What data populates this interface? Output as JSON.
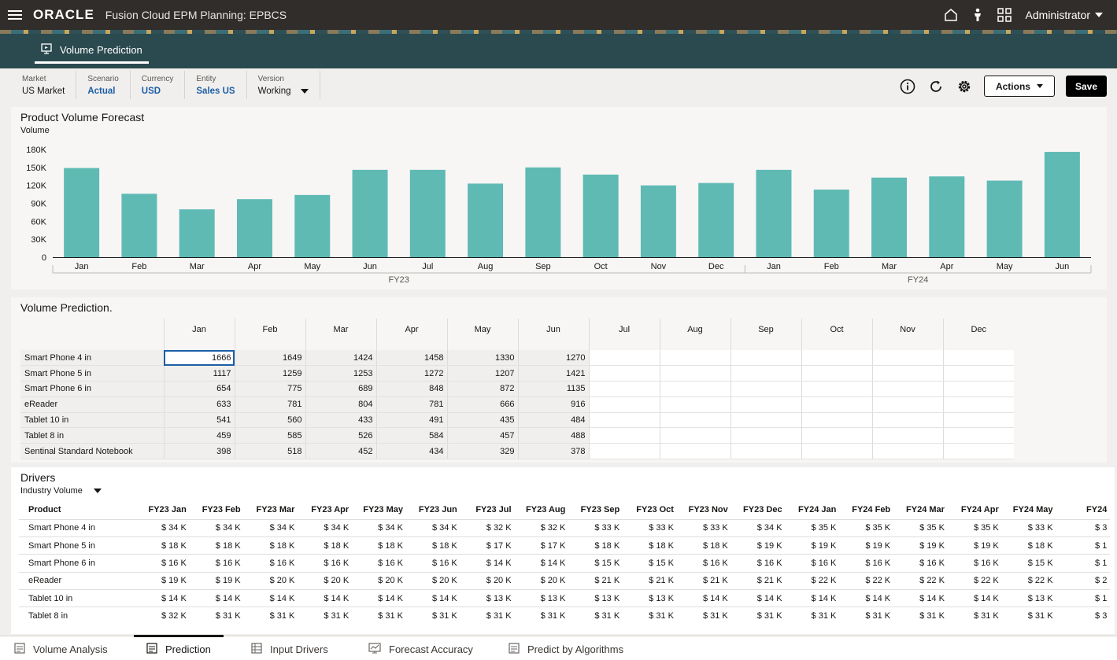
{
  "app": {
    "logo": "ORACLE",
    "title": "Fusion Cloud EPM Planning: EPBCS",
    "user": "Administrator"
  },
  "page_tab": "Volume Prediction",
  "pov": [
    {
      "label": "Market",
      "value": "US Market"
    },
    {
      "label": "Scenario",
      "value": "Actual"
    },
    {
      "label": "Currency",
      "value": "USD"
    },
    {
      "label": "Entity",
      "value": "Sales US"
    },
    {
      "label": "Version",
      "value": "Working"
    }
  ],
  "toolbar": {
    "actions_label": "Actions",
    "save_label": "Save"
  },
  "chart_section": {
    "title": "Product Volume Forecast"
  },
  "chart_data": {
    "type": "bar",
    "title": "Product Volume Forecast",
    "ylabel": "Volume",
    "xlabel": "",
    "categories": [
      "Jan",
      "Feb",
      "Mar",
      "Apr",
      "May",
      "Jun",
      "Jul",
      "Aug",
      "Sep",
      "Oct",
      "Nov",
      "Dec",
      "Jan",
      "Feb",
      "Mar",
      "Apr",
      "May",
      "Jun"
    ],
    "groups": [
      {
        "name": "FY23",
        "count": 12
      },
      {
        "name": "FY24",
        "count": 6
      }
    ],
    "values": [
      149000,
      106000,
      80000,
      97000,
      104000,
      146000,
      146000,
      123000,
      150000,
      138000,
      120000,
      124000,
      146000,
      113000,
      133000,
      135000,
      128000,
      176000
    ],
    "ylim": [
      0,
      180000
    ],
    "yticks": [
      "0",
      "30K",
      "60K",
      "90K",
      "120K",
      "150K",
      "180K"
    ],
    "bar_color": "#5fbab4",
    "grid": false
  },
  "volume_grid": {
    "title": "Volume Prediction.",
    "columns": [
      "Jan",
      "Feb",
      "Mar",
      "Apr",
      "May",
      "Jun",
      "Jul",
      "Aug",
      "Sep",
      "Oct",
      "Nov",
      "Dec"
    ],
    "rows": [
      {
        "label": "Smart Phone 4 in",
        "values": [
          "1666",
          "1649",
          "1424",
          "1458",
          "1330",
          "1270",
          "",
          "",
          "",
          "",
          "",
          ""
        ]
      },
      {
        "label": "Smart Phone 5 in",
        "values": [
          "1117",
          "1259",
          "1253",
          "1272",
          "1207",
          "1421",
          "",
          "",
          "",
          "",
          "",
          ""
        ]
      },
      {
        "label": "Smart Phone 6 in",
        "values": [
          "654",
          "775",
          "689",
          "848",
          "872",
          "1135",
          "",
          "",
          "",
          "",
          "",
          ""
        ]
      },
      {
        "label": "eReader",
        "values": [
          "633",
          "781",
          "804",
          "781",
          "666",
          "916",
          "",
          "",
          "",
          "",
          "",
          ""
        ]
      },
      {
        "label": "Tablet 10 in",
        "values": [
          "541",
          "560",
          "433",
          "491",
          "435",
          "484",
          "",
          "",
          "",
          "",
          "",
          ""
        ]
      },
      {
        "label": "Tablet 8 in",
        "values": [
          "459",
          "585",
          "526",
          "584",
          "457",
          "488",
          "",
          "",
          "",
          "",
          "",
          ""
        ]
      },
      {
        "label": "Sentinal Standard Notebook",
        "values": [
          "398",
          "518",
          "452",
          "434",
          "329",
          "378",
          "",
          "",
          "",
          "",
          "",
          ""
        ]
      }
    ]
  },
  "drivers": {
    "title": "Drivers",
    "selector": "Industry Volume",
    "product_header": "Product",
    "columns": [
      "FY23 Jan",
      "FY23 Feb",
      "FY23 Mar",
      "FY23 Apr",
      "FY23 May",
      "FY23 Jun",
      "FY23 Jul",
      "FY23 Aug",
      "FY23 Sep",
      "FY23 Oct",
      "FY23 Nov",
      "FY23 Dec",
      "FY24 Jan",
      "FY24 Feb",
      "FY24 Mar",
      "FY24 Apr",
      "FY24 May",
      "FY24"
    ],
    "rows": [
      {
        "label": "Smart Phone 4 in",
        "values": [
          "$ 34 K",
          "$ 34 K",
          "$ 34 K",
          "$ 34 K",
          "$ 34 K",
          "$ 34 K",
          "$ 32 K",
          "$ 32 K",
          "$ 33 K",
          "$ 33 K",
          "$ 33 K",
          "$ 34 K",
          "$ 35 K",
          "$ 35 K",
          "$ 35 K",
          "$ 35 K",
          "$ 33 K",
          "$ 3"
        ]
      },
      {
        "label": "Smart Phone 5 in",
        "values": [
          "$ 18 K",
          "$ 18 K",
          "$ 18 K",
          "$ 18 K",
          "$ 18 K",
          "$ 18 K",
          "$ 17 K",
          "$ 17 K",
          "$ 18 K",
          "$ 18 K",
          "$ 18 K",
          "$ 19 K",
          "$ 19 K",
          "$ 19 K",
          "$ 19 K",
          "$ 19 K",
          "$ 18 K",
          "$ 1"
        ]
      },
      {
        "label": "Smart Phone 6 in",
        "values": [
          "$ 16 K",
          "$ 16 K",
          "$ 16 K",
          "$ 16 K",
          "$ 16 K",
          "$ 16 K",
          "$ 14 K",
          "$ 14 K",
          "$ 15 K",
          "$ 15 K",
          "$ 16 K",
          "$ 16 K",
          "$ 16 K",
          "$ 16 K",
          "$ 16 K",
          "$ 16 K",
          "$ 15 K",
          "$ 1"
        ]
      },
      {
        "label": "eReader",
        "values": [
          "$ 19 K",
          "$ 19 K",
          "$ 20 K",
          "$ 20 K",
          "$ 20 K",
          "$ 20 K",
          "$ 20 K",
          "$ 20 K",
          "$ 21 K",
          "$ 21 K",
          "$ 21 K",
          "$ 21 K",
          "$ 22 K",
          "$ 22 K",
          "$ 22 K",
          "$ 22 K",
          "$ 22 K",
          "$ 2"
        ]
      },
      {
        "label": "Tablet 10 in",
        "values": [
          "$ 14 K",
          "$ 14 K",
          "$ 14 K",
          "$ 14 K",
          "$ 14 K",
          "$ 14 K",
          "$ 13 K",
          "$ 13 K",
          "$ 13 K",
          "$ 13 K",
          "$ 14 K",
          "$ 14 K",
          "$ 14 K",
          "$ 14 K",
          "$ 14 K",
          "$ 14 K",
          "$ 13 K",
          "$ 1"
        ]
      },
      {
        "label": "Tablet 8 in",
        "values": [
          "$ 32 K",
          "$ 31 K",
          "$ 31 K",
          "$ 31 K",
          "$ 31 K",
          "$ 31 K",
          "$ 31 K",
          "$ 31 K",
          "$ 31 K",
          "$ 31 K",
          "$ 31 K",
          "$ 31 K",
          "$ 31 K",
          "$ 31 K",
          "$ 31 K",
          "$ 31 K",
          "$ 31 K",
          "$ 3"
        ]
      }
    ]
  },
  "bottom_tabs": [
    {
      "label": "Volume Analysis",
      "active": false
    },
    {
      "label": "Prediction",
      "active": true
    },
    {
      "label": "Input Drivers",
      "active": false
    },
    {
      "label": "Forecast Accuracy",
      "active": false
    },
    {
      "label": "Predict by Algorithms",
      "active": false
    }
  ]
}
